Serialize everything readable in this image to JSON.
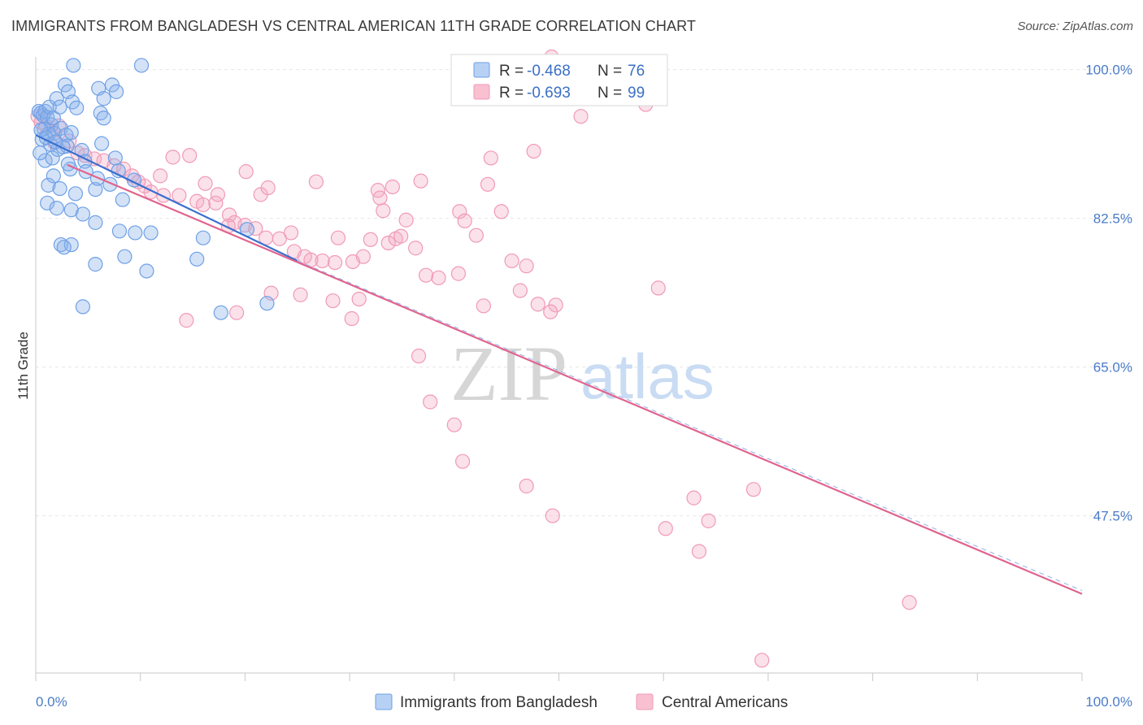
{
  "header": {
    "title": "IMMIGRANTS FROM BANGLADESH VS CENTRAL AMERICAN 11TH GRADE CORRELATION CHART",
    "source": "Source: ZipAtlas.com"
  },
  "watermark": {
    "part1": "ZIP",
    "part2": "atlas"
  },
  "colors": {
    "blue": "#6fa0e6",
    "blue_line": "#3a6fcf",
    "pink": "#f09ab6",
    "pink_line": "#e0648e"
  },
  "chart_data": {
    "type": "scatter",
    "ylabel": "11th Grade",
    "xlim": [
      0,
      100
    ],
    "ylim": [
      29,
      101.5
    ],
    "x_ticks": [
      {
        "value": 0,
        "label": "0.0%"
      },
      {
        "value": 100,
        "label": "100.0%"
      }
    ],
    "y_ticks": [
      {
        "value": 100,
        "label": "100.0%"
      },
      {
        "value": 82.5,
        "label": "82.5%"
      },
      {
        "value": 65,
        "label": "65.0%"
      },
      {
        "value": 47.5,
        "label": "47.5%"
      }
    ],
    "legend": {
      "entries": [
        {
          "r_label": "R =",
          "r_value": "-0.468",
          "n_label": "N =",
          "n_value": "76",
          "color": "blue"
        },
        {
          "r_label": "R =",
          "r_value": "-0.693",
          "n_label": "N =",
          "n_value": "99",
          "color": "pink"
        }
      ]
    },
    "series": [
      {
        "name": "Immigrants from Bangladesh",
        "color": "blue",
        "trend": {
          "x": [
            0,
            25
          ],
          "y": [
            92.3,
            77.5
          ]
        },
        "trend_extension": {
          "x": [
            25,
            100
          ],
          "y": [
            77.5,
            38.7
          ]
        },
        "points": [
          [
            3.6,
            100.5
          ],
          [
            10.1,
            100.5
          ],
          [
            0.3,
            95.1
          ],
          [
            0.5,
            94.9
          ],
          [
            0.7,
            94.6
          ],
          [
            0.9,
            95.1
          ],
          [
            1.1,
            94.4
          ],
          [
            1.3,
            95.6
          ],
          [
            1.5,
            93.5
          ],
          [
            1.7,
            94.3
          ],
          [
            2.0,
            96.6
          ],
          [
            2.3,
            95.6
          ],
          [
            2.8,
            98.2
          ],
          [
            3.1,
            97.4
          ],
          [
            3.5,
            96.2
          ],
          [
            3.9,
            95.5
          ],
          [
            6.0,
            97.8
          ],
          [
            6.5,
            96.6
          ],
          [
            7.3,
            98.2
          ],
          [
            7.7,
            97.4
          ],
          [
            6.2,
            94.9
          ],
          [
            6.5,
            94.3
          ],
          [
            0.8,
            93.0
          ],
          [
            1.2,
            92.4
          ],
          [
            1.8,
            92.5
          ],
          [
            2.4,
            93.1
          ],
          [
            2.9,
            92.3
          ],
          [
            3.4,
            92.6
          ],
          [
            0.6,
            91.8
          ],
          [
            1.4,
            91.2
          ],
          [
            2.1,
            90.6
          ],
          [
            3.0,
            91.0
          ],
          [
            4.4,
            90.5
          ],
          [
            6.3,
            91.3
          ],
          [
            0.9,
            89.3
          ],
          [
            1.6,
            89.6
          ],
          [
            3.3,
            88.3
          ],
          [
            4.7,
            89.2
          ],
          [
            7.6,
            89.6
          ],
          [
            7.9,
            88.1
          ],
          [
            9.4,
            87.0
          ],
          [
            1.2,
            86.4
          ],
          [
            2.3,
            86.0
          ],
          [
            3.8,
            85.4
          ],
          [
            5.7,
            85.9
          ],
          [
            1.1,
            84.3
          ],
          [
            2.0,
            83.7
          ],
          [
            3.4,
            83.5
          ],
          [
            4.5,
            83.0
          ],
          [
            5.7,
            82.0
          ],
          [
            8.0,
            81.0
          ],
          [
            9.5,
            80.8
          ],
          [
            11.0,
            80.8
          ],
          [
            16.0,
            80.2
          ],
          [
            2.4,
            79.4
          ],
          [
            3.4,
            79.4
          ],
          [
            2.7,
            79.1
          ],
          [
            5.7,
            77.1
          ],
          [
            8.5,
            78.0
          ],
          [
            10.6,
            76.3
          ],
          [
            15.4,
            77.7
          ],
          [
            20.2,
            81.2
          ],
          [
            4.5,
            72.1
          ],
          [
            22.1,
            72.5
          ],
          [
            17.7,
            71.4
          ],
          [
            0.5,
            92.9
          ],
          [
            1.0,
            92.0
          ],
          [
            1.9,
            91.5
          ],
          [
            2.6,
            90.9
          ],
          [
            0.4,
            90.2
          ],
          [
            4.8,
            88.0
          ],
          [
            5.9,
            87.2
          ],
          [
            7.1,
            86.5
          ],
          [
            8.3,
            84.7
          ],
          [
            3.1,
            88.9
          ],
          [
            1.7,
            87.5
          ]
        ]
      },
      {
        "name": "Central Americans",
        "color": "pink",
        "trend": {
          "x": [
            3,
            100
          ],
          "y": [
            88.8,
            38.3
          ]
        },
        "points": [
          [
            49.3,
            101.5
          ],
          [
            0.2,
            94.5
          ],
          [
            0.5,
            93.8
          ],
          [
            1.0,
            93.3
          ],
          [
            1.6,
            92.8
          ],
          [
            2.2,
            93.4
          ],
          [
            1.8,
            91.4
          ],
          [
            3.2,
            91.6
          ],
          [
            4.0,
            90.2
          ],
          [
            4.7,
            89.9
          ],
          [
            5.6,
            89.5
          ],
          [
            6.5,
            89.3
          ],
          [
            7.5,
            88.7
          ],
          [
            8.4,
            88.3
          ],
          [
            9.2,
            87.5
          ],
          [
            10.4,
            86.3
          ],
          [
            11.0,
            85.6
          ],
          [
            12.2,
            85.2
          ],
          [
            13.7,
            85.2
          ],
          [
            15.4,
            84.5
          ],
          [
            16.0,
            84.1
          ],
          [
            17.2,
            84.3
          ],
          [
            18.5,
            82.9
          ],
          [
            19.0,
            82.0
          ],
          [
            20.0,
            81.7
          ],
          [
            21.0,
            81.3
          ],
          [
            22.0,
            80.2
          ],
          [
            23.3,
            80.1
          ],
          [
            24.7,
            78.6
          ],
          [
            25.7,
            78.0
          ],
          [
            26.3,
            77.6
          ],
          [
            27.4,
            77.5
          ],
          [
            28.6,
            77.3
          ],
          [
            30.3,
            77.4
          ],
          [
            31.3,
            78.0
          ],
          [
            32.0,
            80.0
          ],
          [
            33.7,
            79.6
          ],
          [
            34.4,
            80.1
          ],
          [
            35.4,
            82.3
          ],
          [
            36.3,
            79.0
          ],
          [
            37.3,
            75.8
          ],
          [
            38.5,
            75.5
          ],
          [
            40.4,
            76.0
          ],
          [
            42.8,
            72.2
          ],
          [
            46.3,
            74.0
          ],
          [
            49.7,
            72.3
          ],
          [
            59.5,
            74.3
          ],
          [
            43.5,
            89.6
          ],
          [
            47.6,
            90.4
          ],
          [
            52.1,
            94.5
          ],
          [
            58.3,
            95.9
          ],
          [
            20.1,
            88.0
          ],
          [
            21.5,
            85.3
          ],
          [
            22.2,
            86.1
          ],
          [
            26.8,
            86.8
          ],
          [
            32.7,
            85.8
          ],
          [
            32.9,
            84.9
          ],
          [
            33.2,
            83.4
          ],
          [
            34.1,
            86.2
          ],
          [
            34.9,
            80.4
          ],
          [
            36.8,
            86.9
          ],
          [
            40.5,
            83.3
          ],
          [
            41.0,
            82.2
          ],
          [
            42.1,
            80.5
          ],
          [
            43.2,
            86.5
          ],
          [
            44.5,
            83.3
          ],
          [
            45.5,
            77.5
          ],
          [
            46.9,
            76.9
          ],
          [
            48.0,
            72.4
          ],
          [
            49.2,
            71.5
          ],
          [
            13.1,
            89.7
          ],
          [
            14.7,
            89.9
          ],
          [
            16.2,
            86.6
          ],
          [
            17.4,
            85.3
          ],
          [
            11.9,
            87.5
          ],
          [
            9.8,
            86.8
          ],
          [
            18.4,
            81.6
          ],
          [
            24.4,
            80.8
          ],
          [
            28.9,
            80.2
          ],
          [
            30.9,
            73.0
          ],
          [
            30.2,
            70.7
          ],
          [
            28.4,
            72.8
          ],
          [
            25.3,
            73.5
          ],
          [
            22.5,
            73.7
          ],
          [
            19.2,
            71.4
          ],
          [
            14.4,
            70.5
          ],
          [
            36.6,
            66.3
          ],
          [
            37.7,
            60.9
          ],
          [
            40.0,
            58.2
          ],
          [
            40.8,
            53.9
          ],
          [
            46.9,
            51.0
          ],
          [
            49.4,
            47.5
          ],
          [
            60.2,
            46.0
          ],
          [
            62.9,
            49.6
          ],
          [
            63.4,
            43.3
          ],
          [
            64.3,
            46.9
          ],
          [
            68.6,
            50.6
          ],
          [
            83.5,
            37.3
          ],
          [
            69.4,
            30.5
          ]
        ]
      }
    ]
  },
  "bottom_legend": [
    {
      "label": "Immigrants from Bangladesh",
      "color": "blue"
    },
    {
      "label": "Central Americans",
      "color": "pink"
    }
  ]
}
